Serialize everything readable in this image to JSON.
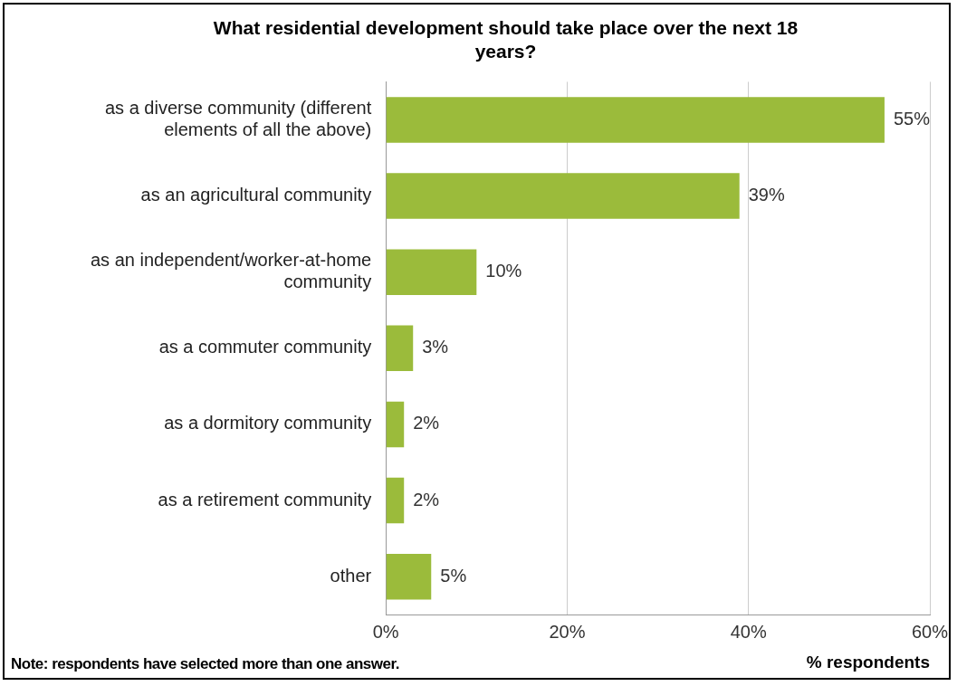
{
  "chart_data": {
    "type": "bar",
    "orientation": "horizontal",
    "title": "What residential development should take place over the next 18 years?",
    "categories": [
      "as a diverse community (different elements of all the above)",
      "as an agricultural community",
      "as an independent/worker-at-home community",
      "as a commuter community",
      "as a dormitory community",
      "as a retirement community",
      "other"
    ],
    "values": [
      55,
      39,
      10,
      3,
      2,
      2,
      5
    ],
    "value_labels": [
      "55%",
      "39%",
      "10%",
      "3%",
      "2%",
      "2%",
      "5%"
    ],
    "color": "#9bbb3b",
    "xlim": [
      0,
      60
    ],
    "xticks": [
      {
        "value": 0,
        "label": "0%"
      },
      {
        "value": 20,
        "label": "20%"
      },
      {
        "value": 40,
        "label": "40%"
      },
      {
        "value": 60,
        "label": "60%"
      }
    ],
    "xlabel": "% respondents",
    "grid": "x",
    "legend": false,
    "annotations": [
      "Note: respondents have selected more than one answer."
    ]
  }
}
